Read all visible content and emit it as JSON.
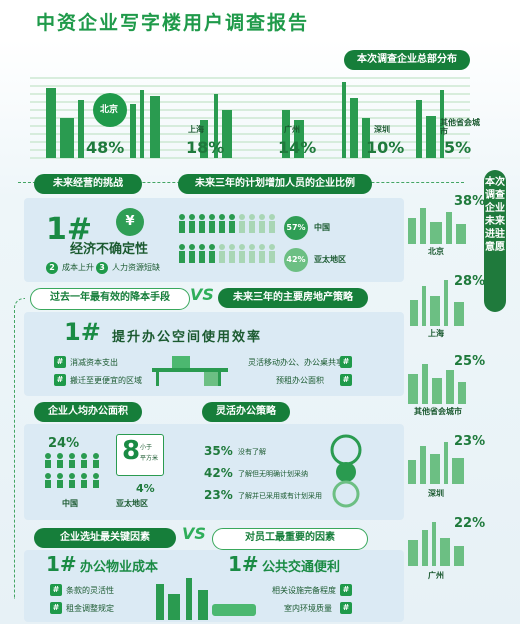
{
  "title": "中资企业写字楼用户调查报告",
  "distribution": {
    "label": "本次调查企业总部分布",
    "items": [
      {
        "city": "北京",
        "value": "48%"
      },
      {
        "city": "上海",
        "value": "18%"
      },
      {
        "city": "广州",
        "value": "14%"
      },
      {
        "city": "深圳",
        "value": "10%"
      },
      {
        "city": "其他省会城市",
        "value": "5%"
      }
    ]
  },
  "challenges": {
    "label": "未来经营的挑战",
    "rank": "1#",
    "top": "经济不确定性",
    "sub": [
      {
        "num": "2",
        "text": "成本上升"
      },
      {
        "num": "3",
        "text": "人力资源短缺"
      }
    ]
  },
  "hiring": {
    "label": "未来三年的计划增加人员的企业比例",
    "rows": [
      {
        "value": "57%",
        "region": "中国",
        "filled": 6
      },
      {
        "value": "42%",
        "region": "亚太地区",
        "filled": 4
      }
    ]
  },
  "cost_cut": {
    "left_label": "过去一年最有效的降本手段",
    "vs": "VS",
    "right_label": "未来三年的主要房地产策略",
    "rank": "1#",
    "top": "提升办公空间使用效率",
    "left_items": [
      "消减资本支出",
      "搬迁至更便宜的区域"
    ],
    "right_items": [
      "灵活移动办公、办公桌共享",
      "预租办公面积"
    ]
  },
  "per_capita": {
    "label": "企业人均办公面积",
    "china": {
      "value": "24%",
      "region": "中国"
    },
    "asia": {
      "value": "4%",
      "region": "亚太地区",
      "badge": "8",
      "badge_sub1": "小于",
      "badge_sub2": "平方米"
    }
  },
  "flex": {
    "label": "灵活办公策略",
    "rows": [
      {
        "value": "35%",
        "text": "没有了解"
      },
      {
        "value": "42%",
        "text": "了解但无明确计划采纳"
      },
      {
        "value": "23%",
        "text": "了解并已采用或有计划采用"
      }
    ]
  },
  "site": {
    "left_label": "企业选址最关键因素",
    "vs": "VS",
    "right_label": "对员工最重要的因素",
    "left_rank": "1#",
    "left_top": "办公物业成本",
    "right_rank": "1#",
    "right_top": "公共交通便利",
    "left_items": [
      "条款的灵活性",
      "租金调整规定"
    ],
    "right_items": [
      "相关设施完备程度",
      "室内环境质量"
    ]
  },
  "expansion": {
    "label": "本次调查企业未来进驻意愿",
    "items": [
      {
        "value": "38%",
        "city": "北京"
      },
      {
        "value": "28%",
        "city": "上海"
      },
      {
        "value": "25%",
        "city": "其他省会城市"
      },
      {
        "value": "23%",
        "city": "深圳"
      },
      {
        "value": "22%",
        "city": "广州"
      }
    ]
  },
  "colors": {
    "primary": "#1f9a4a",
    "dark": "#167e3a",
    "panel": "#dbeaf4"
  }
}
